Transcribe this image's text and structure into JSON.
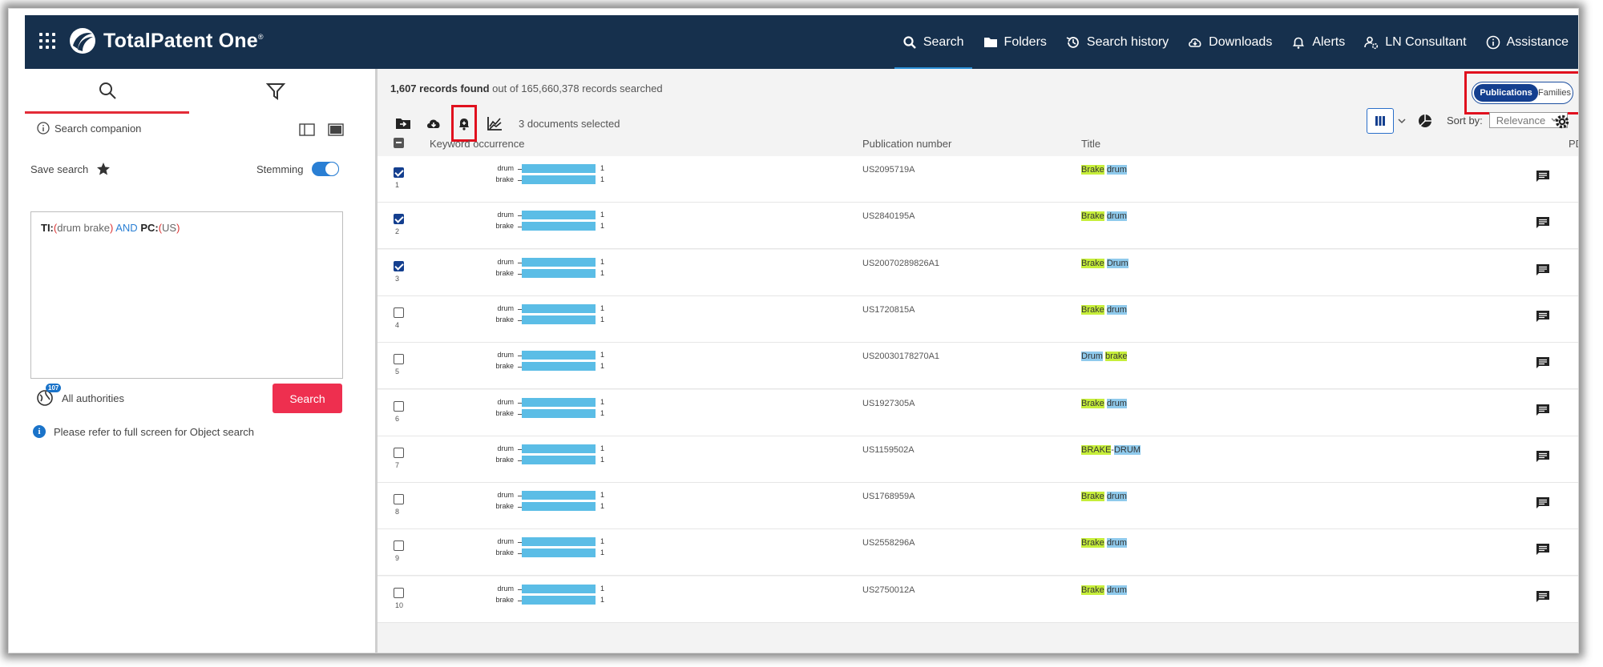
{
  "header": {
    "brand": "TotalPatent One",
    "trademark": "®",
    "nav": [
      {
        "label": "Search",
        "icon": "search-icon",
        "active": true
      },
      {
        "label": "Folders",
        "icon": "folder-icon"
      },
      {
        "label": "Search history",
        "icon": "history-icon"
      },
      {
        "label": "Downloads",
        "icon": "cloud-download-icon"
      },
      {
        "label": "Alerts",
        "icon": "bell-icon"
      },
      {
        "label": "LN Consultant",
        "icon": "user-gear-icon"
      },
      {
        "label": "Assistance",
        "icon": "info-icon"
      }
    ]
  },
  "left": {
    "search_companion": "Search companion",
    "save_search": "Save search",
    "stemming": "Stemming",
    "query": {
      "field1": "TI:",
      "value1": "drum brake",
      "operator": "AND",
      "field2": "PC:",
      "value2": "US"
    },
    "authorities_count": "107",
    "authorities": "All authorities",
    "search_button": "Search",
    "info": "Please refer to full screen for Object search"
  },
  "main": {
    "records_found": "1,607 records found",
    "records_rest": "out of 165,660,378 records searched",
    "toggle": {
      "publications": "Publications",
      "families": "Families"
    },
    "selected": "3 documents selected",
    "sort_by": "Sort by:",
    "sort_value": "Relevance",
    "columns": {
      "keyword": "Keyword occurrence",
      "pubnum": "Publication number",
      "title": "Title",
      "pdf": "PDF"
    },
    "rows": [
      {
        "num": "1",
        "checked": true,
        "pub": "US2095719A",
        "t1": "Brake",
        "t2": "drum",
        "sep": " ",
        "y_first": true,
        "kw1": "drum",
        "kw2": "brake",
        "c1": "1",
        "c2": "1"
      },
      {
        "num": "2",
        "checked": true,
        "pub": "US2840195A",
        "t1": "Brake",
        "t2": "drum",
        "sep": " ",
        "y_first": true,
        "kw1": "drum",
        "kw2": "brake",
        "c1": "1",
        "c2": "1"
      },
      {
        "num": "3",
        "checked": true,
        "pub": "US20070289826A1",
        "t1": "Brake",
        "t2": "Drum",
        "sep": " ",
        "y_first": true,
        "kw1": "drum",
        "kw2": "brake",
        "c1": "1",
        "c2": "1"
      },
      {
        "num": "4",
        "checked": false,
        "pub": "US1720815A",
        "t1": "Brake",
        "t2": "drum",
        "sep": " ",
        "y_first": true,
        "kw1": "drum",
        "kw2": "brake",
        "c1": "1",
        "c2": "1"
      },
      {
        "num": "5",
        "checked": false,
        "pub": "US20030178270A1",
        "t1": "Drum",
        "t2": "brake",
        "sep": " ",
        "y_first": false,
        "kw1": "drum",
        "kw2": "brake",
        "c1": "1",
        "c2": "1"
      },
      {
        "num": "6",
        "checked": false,
        "pub": "US1927305A",
        "t1": "Brake",
        "t2": "drum",
        "sep": " ",
        "y_first": true,
        "kw1": "drum",
        "kw2": "brake",
        "c1": "1",
        "c2": "1"
      },
      {
        "num": "7",
        "checked": false,
        "pub": "US1159502A",
        "t1": "BRAKE",
        "t2": "DRUM",
        "sep": "-",
        "y_first": true,
        "kw1": "drum",
        "kw2": "brake",
        "c1": "1",
        "c2": "1"
      },
      {
        "num": "8",
        "checked": false,
        "pub": "US1768959A",
        "t1": "Brake",
        "t2": "drum",
        "sep": " ",
        "y_first": true,
        "kw1": "drum",
        "kw2": "brake",
        "c1": "1",
        "c2": "1"
      },
      {
        "num": "9",
        "checked": false,
        "pub": "US2558296A",
        "t1": "Brake",
        "t2": "drum",
        "sep": " ",
        "y_first": true,
        "kw1": "drum",
        "kw2": "brake",
        "c1": "1",
        "c2": "1"
      },
      {
        "num": "10",
        "checked": false,
        "pub": "US2750012A",
        "t1": "Brake",
        "t2": "drum",
        "sep": " ",
        "y_first": true,
        "kw1": "drum",
        "kw2": "brake",
        "c1": "1",
        "c2": "1"
      }
    ]
  },
  "colors": {
    "header": "#16304d",
    "accent": "#e32b37",
    "primary": "#143f8f",
    "bar": "#5bbde6",
    "highlight_yellow": "#c6ee3a",
    "highlight_blue": "#8fcaec"
  }
}
